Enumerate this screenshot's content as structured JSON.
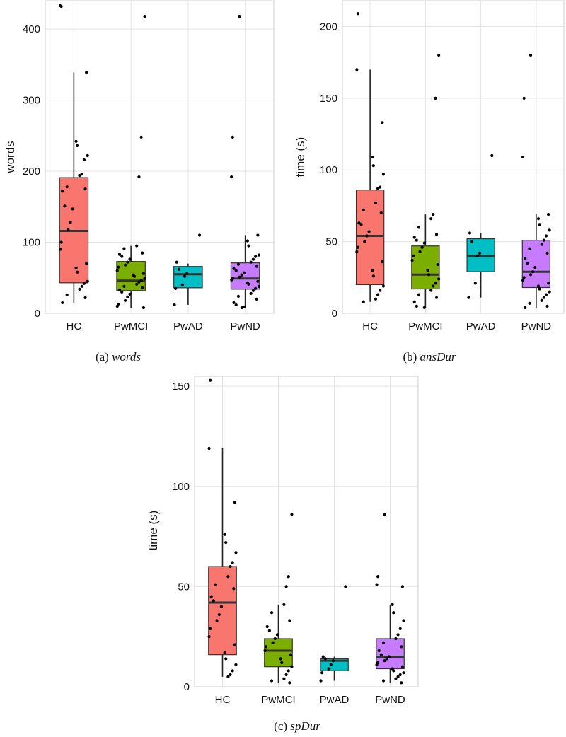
{
  "chart_data": [
    {
      "type": "boxplot",
      "id": "a",
      "caption_prefix": "(a)",
      "caption_name": "words",
      "ylabel": "words",
      "ylim": [
        0,
        440
      ],
      "yticks": [
        0,
        100,
        200,
        300,
        400
      ],
      "categories": [
        "HC",
        "PwMCI",
        "PwAD",
        "PwND"
      ],
      "colors": [
        "#F8766D",
        "#7CAE00",
        "#00BFC4",
        "#C77CFF"
      ],
      "boxes": [
        {
          "q1": 43,
          "median": 116,
          "q3": 191,
          "lower": 15,
          "upper": 339
        },
        {
          "q1": 32,
          "median": 46,
          "q3": 73,
          "lower": 7,
          "upper": 95
        },
        {
          "q1": 36,
          "median": 55,
          "q3": 66,
          "lower": 12,
          "upper": 70
        },
        {
          "q1": 34,
          "median": 49,
          "q3": 71,
          "lower": 8,
          "upper": 110
        }
      ],
      "points": [
        [
          432,
          433,
          339,
          242,
          236,
          222,
          216,
          196,
          194,
          178,
          175,
          172,
          151,
          147,
          128,
          118,
          100,
          90,
          70,
          64,
          58,
          45,
          42,
          38,
          34,
          26,
          22,
          15
        ],
        [
          418,
          248,
          192,
          95,
          91,
          85,
          83,
          80,
          76,
          72,
          68,
          65,
          60,
          56,
          54,
          52,
          49,
          46,
          44,
          41,
          38,
          36,
          33,
          30,
          27,
          23,
          18,
          13,
          10,
          8
        ],
        [
          110,
          72,
          62,
          56,
          52,
          40,
          35,
          12
        ],
        [
          418,
          248,
          192,
          110,
          102,
          95,
          82,
          80,
          76,
          72,
          69,
          66,
          63,
          60,
          57,
          54,
          51,
          49,
          47,
          45,
          43,
          41,
          38,
          35,
          32,
          28,
          24,
          20,
          15,
          12,
          9,
          8
        ]
      ]
    },
    {
      "type": "boxplot",
      "id": "b",
      "caption_prefix": "(b)",
      "caption_name": "ansDur",
      "ylabel": "time (s)",
      "ylim": [
        0,
        218
      ],
      "yticks": [
        0,
        50,
        100,
        150,
        200
      ],
      "categories": [
        "HC",
        "PwMCI",
        "PwAD",
        "PwND"
      ],
      "colors": [
        "#F8766D",
        "#7CAE00",
        "#00BFC4",
        "#C77CFF"
      ],
      "boxes": [
        {
          "q1": 20,
          "median": 54,
          "q3": 86,
          "lower": 8,
          "upper": 170
        },
        {
          "q1": 17,
          "median": 27,
          "q3": 47,
          "lower": 4,
          "upper": 69
        },
        {
          "q1": 29,
          "median": 40,
          "q3": 52,
          "lower": 11,
          "upper": 56
        },
        {
          "q1": 18,
          "median": 29,
          "q3": 51,
          "lower": 4,
          "upper": 69
        }
      ],
      "points": [
        [
          209,
          170,
          133,
          109,
          103,
          97,
          88,
          87,
          77,
          72,
          70,
          63,
          62,
          57,
          54,
          50,
          46,
          43,
          36,
          30,
          26,
          19,
          16,
          13,
          10,
          8
        ],
        [
          180,
          150,
          69,
          66,
          60,
          55,
          53,
          51,
          49,
          46,
          43,
          40,
          37,
          34,
          30,
          27,
          24,
          21,
          19,
          16,
          13,
          11,
          8,
          5,
          4
        ],
        [
          110,
          56,
          50,
          42,
          40,
          21,
          11
        ],
        [
          180,
          150,
          109,
          69,
          66,
          62,
          58,
          54,
          51,
          48,
          45,
          42,
          38,
          35,
          32,
          29,
          27,
          25,
          23,
          21,
          19,
          17,
          15,
          13,
          11,
          9,
          7,
          5,
          4
        ]
      ]
    },
    {
      "type": "boxplot",
      "id": "c",
      "caption_prefix": "(c)",
      "caption_name": "spDur",
      "ylabel": "time (s)",
      "ylim": [
        0,
        155
      ],
      "yticks": [
        0,
        50,
        100,
        150
      ],
      "categories": [
        "HC",
        "PwMCI",
        "PwAD",
        "PwND"
      ],
      "colors": [
        "#F8766D",
        "#7CAE00",
        "#00BFC4",
        "#C77CFF"
      ],
      "boxes": [
        {
          "q1": 16,
          "median": 42,
          "q3": 60,
          "lower": 5,
          "upper": 119
        },
        {
          "q1": 10,
          "median": 18,
          "q3": 24,
          "lower": 2,
          "upper": 41
        },
        {
          "q1": 8,
          "median": 13,
          "q3": 14,
          "lower": 3,
          "upper": 15
        },
        {
          "q1": 9,
          "median": 15,
          "q3": 24,
          "lower": 2,
          "upper": 41
        }
      ],
      "points": [
        [
          153,
          119,
          92,
          76,
          72,
          67,
          62,
          60,
          55,
          51,
          49,
          45,
          43,
          40,
          36,
          33,
          29,
          25,
          21,
          17,
          14,
          11,
          8,
          6,
          5
        ],
        [
          86,
          55,
          50,
          41,
          37,
          33,
          30,
          28,
          26,
          24,
          22,
          20,
          18,
          16,
          14,
          12,
          10,
          8,
          6,
          4,
          3,
          2
        ],
        [
          50,
          15,
          14,
          13,
          11,
          9,
          7,
          3
        ],
        [
          86,
          55,
          51,
          50,
          41,
          37,
          33,
          29,
          26,
          24,
          22,
          20,
          18,
          16,
          15,
          14,
          13,
          12,
          11,
          10,
          9,
          8,
          7,
          6,
          5,
          4,
          3,
          2
        ]
      ]
    }
  ]
}
